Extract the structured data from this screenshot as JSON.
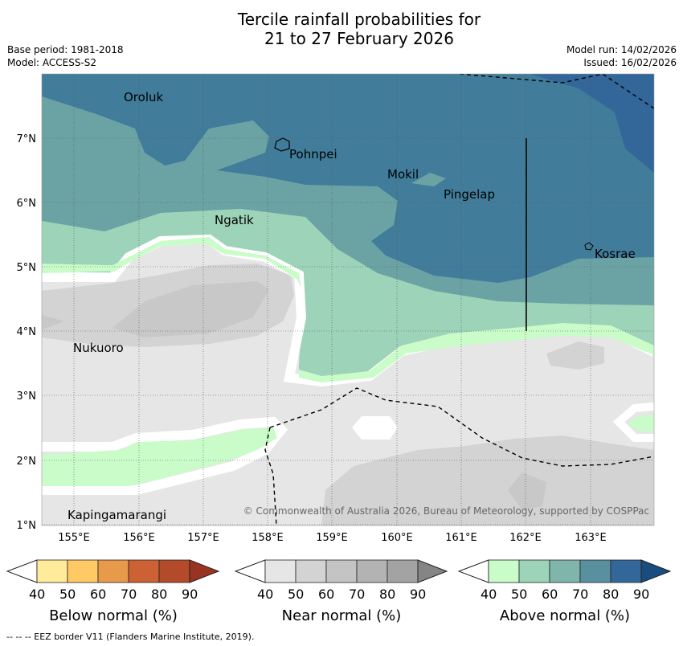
{
  "title_line1": "Tercile rainfall probabilities for",
  "title_line2": "21 to 27 February 2026",
  "base_period": "Base period: 1981-2018",
  "model": "Model: ACCESS-S2",
  "model_run": "Model run: 14/02/2026",
  "issued": "Issued: 16/02/2026",
  "copyright": "© Commonwealth of Australia 2026, Bureau of Meteorology, supported by COSPPac",
  "x_ticks": [
    "155°E",
    "156°E",
    "157°E",
    "158°E",
    "159°E",
    "160°E",
    "161°E",
    "162°E",
    "163°E"
  ],
  "y_ticks": [
    "7°N",
    "6°N",
    "5°N",
    "4°N",
    "3°N",
    "2°N",
    "1°N"
  ],
  "places": {
    "oroluk": "Oroluk",
    "pohnpei": "Pohnpei",
    "mokil": "Mokil",
    "pingelap": "Pingelap",
    "ngatik": "Ngatik",
    "kosrae": "Kosrae",
    "nukuoro": "Nukuoro",
    "kapingamarangi": "Kapingamarangi"
  },
  "colorbars": {
    "below": {
      "title": "Below normal (%)",
      "ticks": [
        "40",
        "50",
        "60",
        "70",
        "80",
        "90"
      ],
      "colors": [
        "#ffeb99",
        "#ffc966",
        "#e69a4a",
        "#cc6233",
        "#b34a29",
        "#993322"
      ]
    },
    "near": {
      "title": "Near normal (%)",
      "ticks": [
        "40",
        "50",
        "60",
        "70",
        "80",
        "90"
      ],
      "colors": [
        "#e6e6e6",
        "#d3d3d3",
        "#c4c4c4",
        "#b3b3b3",
        "#a3a3a3",
        "#858585"
      ]
    },
    "above": {
      "title": "Above normal (%)",
      "ticks": [
        "40",
        "50",
        "60",
        "70",
        "80",
        "90"
      ],
      "colors": [
        "#c9fcc9",
        "#9dd3b8",
        "#7fb5ab",
        "#58909f",
        "#336699",
        "#194d80"
      ]
    }
  },
  "footer": "--  --  -- EEZ border V11 (Flanders Marine Institute, 2019)."
}
